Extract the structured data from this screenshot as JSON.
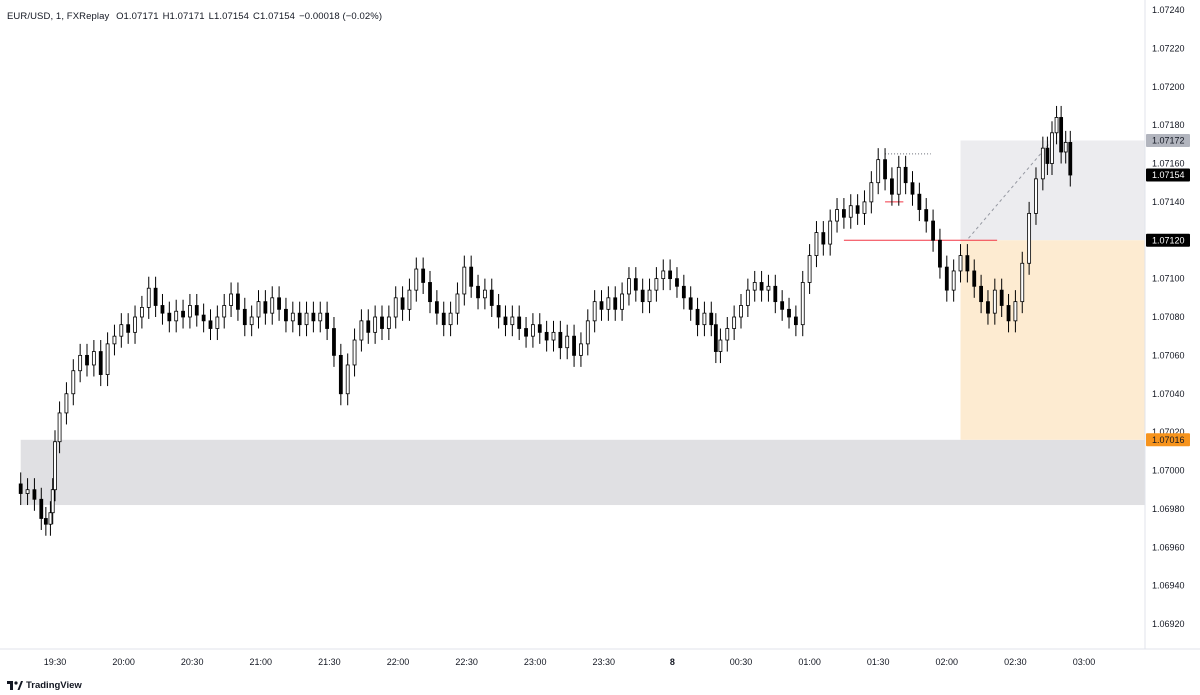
{
  "legend": {
    "symbol": "EUR/USD, 1, FXReplay",
    "open": "O1.07171",
    "high": "H1.07171",
    "low": "L1.07154",
    "close": "C1.07154",
    "change": "−0.00018 (−0.02%)"
  },
  "brand": "TradingView",
  "colors": {
    "candle_up": "#ffffff",
    "candle_down": "#000000",
    "wick": "#000000",
    "demand_zone": "#e0e0e3",
    "target_zone": "#ececef",
    "stop_zone": "#fdebd1",
    "red_line": "#f23645",
    "tag_grey": "#b2b5be",
    "tag_black": "#000000",
    "tag_orange": "#f7941d"
  },
  "chart_data": {
    "type": "candlestick",
    "y_ticks": [
      "1.07240",
      "1.07220",
      "1.07200",
      "1.07180",
      "1.07160",
      "1.07140",
      "1.07120",
      "1.07100",
      "1.07080",
      "1.07060",
      "1.07040",
      "1.07020",
      "1.07000",
      "1.06980",
      "1.06960",
      "1.06940",
      "1.06920"
    ],
    "x_ticks": [
      "19:30",
      "20:00",
      "20:30",
      "21:00",
      "21:30",
      "22:00",
      "22:30",
      "23:00",
      "23:30",
      "8",
      "00:30",
      "01:00",
      "01:30",
      "02:00",
      "02:30",
      "03:00"
    ],
    "price_tags": [
      {
        "label": "1.07172",
        "price": 1.07172,
        "style": "grey"
      },
      {
        "label": "1.07154",
        "price": 1.07154,
        "style": "black"
      },
      {
        "label": "1.07120",
        "price": 1.0712,
        "style": "black"
      },
      {
        "label": "1.07016",
        "price": 1.07016,
        "style": "orange"
      }
    ],
    "zones": [
      {
        "name": "demand",
        "from_time": "19:15",
        "to_time": "end",
        "top": 1.07016,
        "bottom": 1.06982
      },
      {
        "name": "target",
        "from_time": "02:06",
        "to_time": "end",
        "top": 1.07172,
        "bottom": 1.0712
      },
      {
        "name": "stop",
        "from_time": "02:06",
        "to_time": "end",
        "top": 1.0712,
        "bottom": 1.07016
      }
    ],
    "lines": [
      {
        "name": "red-level-long",
        "price": 1.0712,
        "from_time": "01:15",
        "to_time": "02:22"
      },
      {
        "name": "red-level-short",
        "price": 1.0714,
        "from_time": "01:33",
        "to_time": "01:41"
      },
      {
        "name": "dotted-high",
        "price": 1.07165,
        "from_time": "01:33",
        "to_time": "01:53"
      }
    ],
    "series": [
      {
        "time": "19:15",
        "open": 1.06993,
        "close": 1.06988
      },
      {
        "time": "19:18",
        "open": 1.06988,
        "close": 1.0699
      },
      {
        "time": "19:21",
        "open": 1.0699,
        "close": 1.06985
      },
      {
        "time": "19:24",
        "open": 1.06985,
        "close": 1.06975
      },
      {
        "time": "19:26",
        "open": 1.06975,
        "close": 1.06972
      },
      {
        "time": "19:28",
        "open": 1.06972,
        "close": 1.06978
      },
      {
        "time": "19:29",
        "open": 1.06978,
        "close": 1.0699
      },
      {
        "time": "19:30",
        "open": 1.0699,
        "close": 1.07015
      },
      {
        "time": "19:32",
        "open": 1.07015,
        "close": 1.0703
      },
      {
        "time": "19:35",
        "open": 1.0703,
        "close": 1.0704
      },
      {
        "time": "19:38",
        "open": 1.0704,
        "close": 1.07052
      },
      {
        "time": "19:41",
        "open": 1.07052,
        "close": 1.0706
      },
      {
        "time": "19:44",
        "open": 1.0706,
        "close": 1.07055
      },
      {
        "time": "19:47",
        "open": 1.07055,
        "close": 1.07062
      },
      {
        "time": "19:50",
        "open": 1.07062,
        "close": 1.0705
      },
      {
        "time": "19:53",
        "open": 1.0705,
        "close": 1.07066
      },
      {
        "time": "19:56",
        "open": 1.07066,
        "close": 1.0707
      },
      {
        "time": "19:59",
        "open": 1.0707,
        "close": 1.07076
      },
      {
        "time": "20:02",
        "open": 1.07076,
        "close": 1.07072
      },
      {
        "time": "20:05",
        "open": 1.07072,
        "close": 1.0708
      },
      {
        "time": "20:08",
        "open": 1.0708,
        "close": 1.07085
      },
      {
        "time": "20:11",
        "open": 1.07085,
        "close": 1.07095
      },
      {
        "time": "20:14",
        "open": 1.07095,
        "close": 1.07086
      },
      {
        "time": "20:17",
        "open": 1.07086,
        "close": 1.07082
      },
      {
        "time": "20:20",
        "open": 1.07082,
        "close": 1.07078
      },
      {
        "time": "20:23",
        "open": 1.07078,
        "close": 1.07083
      },
      {
        "time": "20:26",
        "open": 1.07083,
        "close": 1.0708
      },
      {
        "time": "20:29",
        "open": 1.0708,
        "close": 1.07086
      },
      {
        "time": "20:32",
        "open": 1.07086,
        "close": 1.07081
      },
      {
        "time": "20:35",
        "open": 1.07081,
        "close": 1.07078
      },
      {
        "time": "20:38",
        "open": 1.07078,
        "close": 1.07074
      },
      {
        "time": "20:41",
        "open": 1.07074,
        "close": 1.0708
      },
      {
        "time": "20:44",
        "open": 1.0708,
        "close": 1.07086
      },
      {
        "time": "20:47",
        "open": 1.07086,
        "close": 1.07092
      },
      {
        "time": "20:50",
        "open": 1.07092,
        "close": 1.07084
      },
      {
        "time": "20:53",
        "open": 1.07084,
        "close": 1.07076
      },
      {
        "time": "20:56",
        "open": 1.07076,
        "close": 1.0708
      },
      {
        "time": "20:59",
        "open": 1.0708,
        "close": 1.07088
      },
      {
        "time": "21:02",
        "open": 1.07088,
        "close": 1.07082
      },
      {
        "time": "21:05",
        "open": 1.07082,
        "close": 1.0709
      },
      {
        "time": "21:08",
        "open": 1.0709,
        "close": 1.07084
      },
      {
        "time": "21:11",
        "open": 1.07084,
        "close": 1.07078
      },
      {
        "time": "21:14",
        "open": 1.07078,
        "close": 1.07082
      },
      {
        "time": "21:17",
        "open": 1.07082,
        "close": 1.07076
      },
      {
        "time": "21:20",
        "open": 1.07076,
        "close": 1.07082
      },
      {
        "time": "21:23",
        "open": 1.07082,
        "close": 1.07078
      },
      {
        "time": "21:26",
        "open": 1.07078,
        "close": 1.07082
      },
      {
        "time": "21:29",
        "open": 1.07082,
        "close": 1.07074
      },
      {
        "time": "21:32",
        "open": 1.07074,
        "close": 1.0706
      },
      {
        "time": "21:35",
        "open": 1.0706,
        "close": 1.0704
      },
      {
        "time": "21:38",
        "open": 1.0704,
        "close": 1.07055
      },
      {
        "time": "21:41",
        "open": 1.07055,
        "close": 1.07068
      },
      {
        "time": "21:44",
        "open": 1.07068,
        "close": 1.07078
      },
      {
        "time": "21:47",
        "open": 1.07078,
        "close": 1.07072
      },
      {
        "time": "21:50",
        "open": 1.07072,
        "close": 1.0708
      },
      {
        "time": "21:53",
        "open": 1.0708,
        "close": 1.07074
      },
      {
        "time": "21:56",
        "open": 1.07074,
        "close": 1.0708
      },
      {
        "time": "21:59",
        "open": 1.0708,
        "close": 1.0709
      },
      {
        "time": "22:02",
        "open": 1.0709,
        "close": 1.07084
      },
      {
        "time": "22:05",
        "open": 1.07084,
        "close": 1.07094
      },
      {
        "time": "22:08",
        "open": 1.07094,
        "close": 1.07105
      },
      {
        "time": "22:11",
        "open": 1.07105,
        "close": 1.07098
      },
      {
        "time": "22:14",
        "open": 1.07098,
        "close": 1.07088
      },
      {
        "time": "22:17",
        "open": 1.07088,
        "close": 1.07082
      },
      {
        "time": "22:20",
        "open": 1.07082,
        "close": 1.07076
      },
      {
        "time": "22:23",
        "open": 1.07076,
        "close": 1.07082
      },
      {
        "time": "22:26",
        "open": 1.07082,
        "close": 1.07092
      },
      {
        "time": "22:29",
        "open": 1.07092,
        "close": 1.07106
      },
      {
        "time": "22:32",
        "open": 1.07106,
        "close": 1.07096
      },
      {
        "time": "22:35",
        "open": 1.07096,
        "close": 1.0709
      },
      {
        "time": "22:38",
        "open": 1.0709,
        "close": 1.07094
      },
      {
        "time": "22:41",
        "open": 1.07094,
        "close": 1.07086
      },
      {
        "time": "22:44",
        "open": 1.07086,
        "close": 1.0708
      },
      {
        "time": "22:47",
        "open": 1.0708,
        "close": 1.07076
      },
      {
        "time": "22:50",
        "open": 1.07076,
        "close": 1.0708
      },
      {
        "time": "22:53",
        "open": 1.0708,
        "close": 1.07074
      },
      {
        "time": "22:56",
        "open": 1.07074,
        "close": 1.0707
      },
      {
        "time": "22:59",
        "open": 1.0707,
        "close": 1.07076
      },
      {
        "time": "23:02",
        "open": 1.07076,
        "close": 1.07072
      },
      {
        "time": "23:05",
        "open": 1.07072,
        "close": 1.07068
      },
      {
        "time": "23:08",
        "open": 1.07068,
        "close": 1.07072
      },
      {
        "time": "23:11",
        "open": 1.07072,
        "close": 1.07064
      },
      {
        "time": "23:14",
        "open": 1.07064,
        "close": 1.0707
      },
      {
        "time": "23:17",
        "open": 1.0707,
        "close": 1.0706
      },
      {
        "time": "23:20",
        "open": 1.0706,
        "close": 1.07066
      },
      {
        "time": "23:23",
        "open": 1.07066,
        "close": 1.07078
      },
      {
        "time": "23:26",
        "open": 1.07078,
        "close": 1.07088
      },
      {
        "time": "23:29",
        "open": 1.07088,
        "close": 1.07084
      },
      {
        "time": "23:32",
        "open": 1.07084,
        "close": 1.0709
      },
      {
        "time": "23:35",
        "open": 1.0709,
        "close": 1.07084
      },
      {
        "time": "23:38",
        "open": 1.07084,
        "close": 1.07092
      },
      {
        "time": "23:41",
        "open": 1.07092,
        "close": 1.071
      },
      {
        "time": "23:44",
        "open": 1.071,
        "close": 1.07094
      },
      {
        "time": "23:47",
        "open": 1.07094,
        "close": 1.07088
      },
      {
        "time": "23:50",
        "open": 1.07088,
        "close": 1.07094
      },
      {
        "time": "23:53",
        "open": 1.07094,
        "close": 1.071
      },
      {
        "time": "23:56",
        "open": 1.071,
        "close": 1.07104
      },
      {
        "time": "23:59",
        "open": 1.07104,
        "close": 1.071
      },
      {
        "time": "00:02",
        "open": 1.071,
        "close": 1.07096
      },
      {
        "time": "00:05",
        "open": 1.07096,
        "close": 1.0709
      },
      {
        "time": "00:08",
        "open": 1.0709,
        "close": 1.07084
      },
      {
        "time": "00:11",
        "open": 1.07084,
        "close": 1.07076
      },
      {
        "time": "00:14",
        "open": 1.07076,
        "close": 1.07082
      },
      {
        "time": "00:17",
        "open": 1.07082,
        "close": 1.07076
      },
      {
        "time": "00:19",
        "open": 1.07076,
        "close": 1.07062
      },
      {
        "time": "00:21",
        "open": 1.07062,
        "close": 1.07068
      },
      {
        "time": "00:24",
        "open": 1.07068,
        "close": 1.07074
      },
      {
        "time": "00:27",
        "open": 1.07074,
        "close": 1.0708
      },
      {
        "time": "00:30",
        "open": 1.0708,
        "close": 1.07086
      },
      {
        "time": "00:33",
        "open": 1.07086,
        "close": 1.07094
      },
      {
        "time": "00:36",
        "open": 1.07094,
        "close": 1.07098
      },
      {
        "time": "00:39",
        "open": 1.07098,
        "close": 1.07094
      },
      {
        "time": "00:42",
        "open": 1.07094,
        "close": 1.07096
      },
      {
        "time": "00:45",
        "open": 1.07096,
        "close": 1.07088
      },
      {
        "time": "00:48",
        "open": 1.07088,
        "close": 1.07084
      },
      {
        "time": "00:51",
        "open": 1.07084,
        "close": 1.0708
      },
      {
        "time": "00:54",
        "open": 1.0708,
        "close": 1.07076
      },
      {
        "time": "00:57",
        "open": 1.07076,
        "close": 1.07098
      },
      {
        "time": "01:00",
        "open": 1.07098,
        "close": 1.07112
      },
      {
        "time": "01:03",
        "open": 1.07112,
        "close": 1.07124
      },
      {
        "time": "01:06",
        "open": 1.07124,
        "close": 1.07118
      },
      {
        "time": "01:09",
        "open": 1.07118,
        "close": 1.0713
      },
      {
        "time": "01:12",
        "open": 1.0713,
        "close": 1.07136
      },
      {
        "time": "01:15",
        "open": 1.07136,
        "close": 1.07132
      },
      {
        "time": "01:18",
        "open": 1.07132,
        "close": 1.07138
      },
      {
        "time": "01:21",
        "open": 1.07138,
        "close": 1.07134
      },
      {
        "time": "01:24",
        "open": 1.07134,
        "close": 1.0714
      },
      {
        "time": "01:27",
        "open": 1.0714,
        "close": 1.0715
      },
      {
        "time": "01:30",
        "open": 1.0715,
        "close": 1.07162
      },
      {
        "time": "01:33",
        "open": 1.07162,
        "close": 1.07152
      },
      {
        "time": "01:36",
        "open": 1.07152,
        "close": 1.07144
      },
      {
        "time": "01:39",
        "open": 1.07144,
        "close": 1.07158
      },
      {
        "time": "01:42",
        "open": 1.07158,
        "close": 1.0715
      },
      {
        "time": "01:45",
        "open": 1.0715,
        "close": 1.07144
      },
      {
        "time": "01:48",
        "open": 1.07144,
        "close": 1.07136
      },
      {
        "time": "01:51",
        "open": 1.07136,
        "close": 1.0713
      },
      {
        "time": "01:54",
        "open": 1.0713,
        "close": 1.0712
      },
      {
        "time": "01:57",
        "open": 1.0712,
        "close": 1.07106
      },
      {
        "time": "02:00",
        "open": 1.07106,
        "close": 1.07094
      },
      {
        "time": "02:03",
        "open": 1.07094,
        "close": 1.07104
      },
      {
        "time": "02:06",
        "open": 1.07104,
        "close": 1.07112
      },
      {
        "time": "02:09",
        "open": 1.07112,
        "close": 1.07104
      },
      {
        "time": "02:12",
        "open": 1.07104,
        "close": 1.07096
      },
      {
        "time": "02:15",
        "open": 1.07096,
        "close": 1.07088
      },
      {
        "time": "02:18",
        "open": 1.07088,
        "close": 1.07082
      },
      {
        "time": "02:21",
        "open": 1.07082,
        "close": 1.07094
      },
      {
        "time": "02:24",
        "open": 1.07094,
        "close": 1.07086
      },
      {
        "time": "02:27",
        "open": 1.07086,
        "close": 1.07078
      },
      {
        "time": "02:30",
        "open": 1.07078,
        "close": 1.07088
      },
      {
        "time": "02:33",
        "open": 1.07088,
        "close": 1.07108
      },
      {
        "time": "02:36",
        "open": 1.07108,
        "close": 1.07134
      },
      {
        "time": "02:39",
        "open": 1.07134,
        "close": 1.07152
      },
      {
        "time": "02:42",
        "open": 1.07152,
        "close": 1.07168
      },
      {
        "time": "02:44",
        "open": 1.07168,
        "close": 1.0716
      },
      {
        "time": "02:46",
        "open": 1.0716,
        "close": 1.07176
      },
      {
        "time": "02:48",
        "open": 1.07176,
        "close": 1.07184
      },
      {
        "time": "02:50",
        "open": 1.07184,
        "close": 1.07166
      },
      {
        "time": "02:52",
        "open": 1.07166,
        "close": 1.07171
      },
      {
        "time": "02:54",
        "open": 1.07171,
        "close": 1.07154
      }
    ]
  }
}
